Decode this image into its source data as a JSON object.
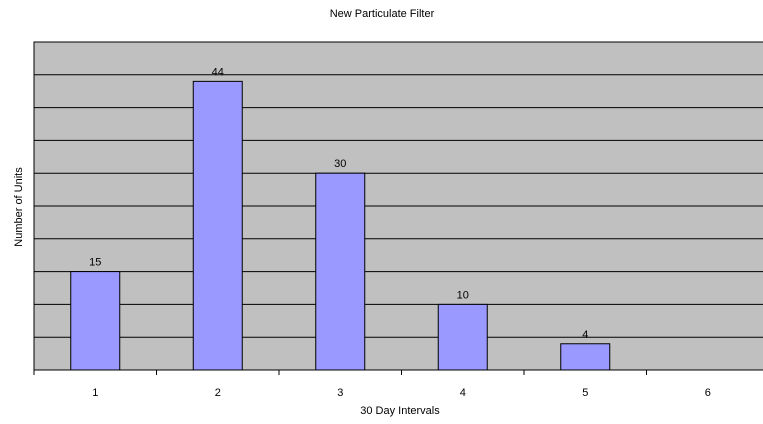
{
  "chart_data": {
    "type": "bar",
    "title": "New Particulate Filter",
    "xlabel": "30 Day Intervals",
    "ylabel": "Number of Units",
    "categories": [
      "1",
      "2",
      "3",
      "4",
      "5",
      "6"
    ],
    "values": [
      15,
      44,
      30,
      10,
      4,
      null
    ],
    "ylim": [
      0,
      50
    ],
    "grid": true,
    "legend": "none",
    "colors": {
      "bar_fill": "#9999ff",
      "bar_stroke": "#000000",
      "plot_background": "#c0c0c0",
      "gridline": "#000000"
    }
  }
}
